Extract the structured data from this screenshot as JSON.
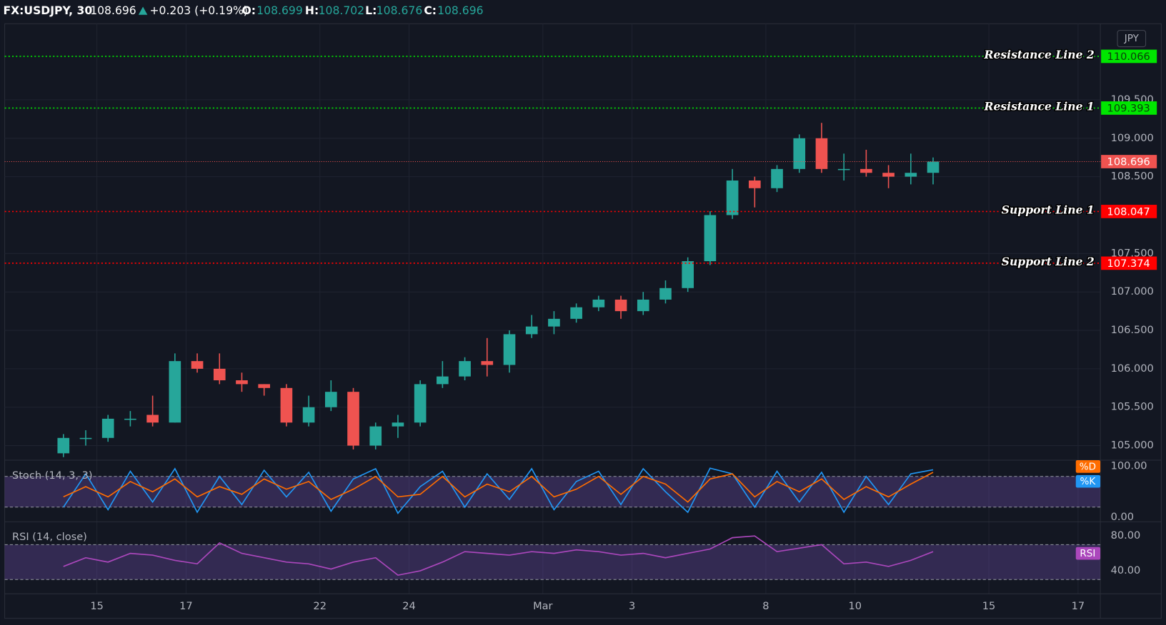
{
  "header": {
    "symbol": "FX:USDJPY, 30",
    "last": "108.696",
    "change": "+0.203 (+0.19%)",
    "ohlc": [
      {
        "label": "O:",
        "value": "108.699"
      },
      {
        "label": "H:",
        "value": "108.702"
      },
      {
        "label": "L:",
        "value": "108.676"
      },
      {
        "label": "C:",
        "value": "108.696"
      }
    ]
  },
  "chart_data": [
    {
      "type": "candlestick",
      "categories": [
        null,
        null,
        null,
        null,
        "15",
        null,
        null,
        null,
        "17",
        null,
        null,
        null,
        null,
        null,
        "22",
        null,
        null,
        null,
        "24",
        null,
        null,
        null,
        null,
        null,
        "Mar",
        null,
        null,
        null,
        "3",
        null,
        null,
        null,
        null,
        null,
        "8",
        null,
        null,
        null,
        "10",
        null,
        null,
        null,
        null,
        null,
        "15",
        null,
        null,
        null,
        "17"
      ],
      "open": [
        null,
        null,
        104.9,
        105.1,
        105.1,
        105.35,
        105.4,
        105.3,
        106.1,
        106.0,
        105.85,
        105.8,
        105.75,
        105.3,
        105.5,
        105.7,
        105.0,
        105.25,
        105.3,
        105.8,
        105.9,
        106.1,
        106.05,
        106.45,
        106.55,
        106.65,
        106.8,
        106.9,
        106.75,
        106.9,
        107.05,
        107.4,
        108.0,
        108.45,
        108.35,
        108.6,
        109.0,
        108.6,
        108.6,
        108.55,
        108.5,
        108.55,
        null,
        null,
        null,
        null,
        null,
        null,
        null
      ],
      "high": [
        null,
        null,
        105.15,
        105.2,
        105.4,
        105.45,
        105.65,
        106.2,
        106.2,
        106.2,
        105.95,
        105.8,
        105.8,
        105.65,
        105.85,
        105.75,
        105.3,
        105.4,
        105.85,
        106.1,
        106.15,
        106.4,
        106.5,
        106.7,
        106.75,
        106.85,
        106.95,
        106.95,
        107.0,
        107.15,
        107.45,
        108.05,
        108.6,
        108.5,
        108.65,
        109.05,
        109.2,
        108.8,
        108.85,
        108.65,
        108.8,
        108.75,
        null,
        null,
        null,
        null,
        null,
        null,
        null
      ],
      "low": [
        null,
        null,
        104.85,
        105.0,
        105.05,
        105.25,
        105.25,
        105.3,
        105.95,
        105.8,
        105.7,
        105.65,
        105.25,
        105.25,
        105.45,
        104.95,
        104.95,
        105.1,
        105.25,
        105.75,
        105.85,
        105.9,
        105.95,
        106.4,
        106.45,
        106.6,
        106.75,
        106.65,
        106.7,
        106.85,
        107.0,
        107.35,
        107.95,
        108.1,
        108.3,
        108.55,
        108.55,
        108.45,
        108.5,
        108.35,
        108.4,
        108.4,
        null,
        null,
        null,
        null,
        null,
        null,
        null
      ],
      "close": [
        null,
        null,
        105.1,
        105.1,
        105.35,
        105.35,
        105.3,
        106.1,
        106.0,
        105.85,
        105.8,
        105.75,
        105.3,
        105.5,
        105.7,
        105.0,
        105.25,
        105.3,
        105.8,
        105.9,
        106.1,
        106.05,
        106.45,
        106.55,
        106.65,
        106.8,
        106.9,
        106.75,
        106.9,
        107.05,
        107.4,
        108.0,
        108.45,
        108.35,
        108.6,
        109.0,
        108.6,
        108.6,
        108.55,
        108.5,
        108.55,
        108.696,
        null,
        null,
        null,
        null,
        null,
        null,
        null
      ],
      "up_color": "#26a69a",
      "down_color": "#ef5350",
      "ylim": [
        104.81,
        110.49
      ],
      "yticks": [
        {
          "value": 105,
          "label": "105.000"
        },
        {
          "value": 105.5,
          "label": "105.500"
        },
        {
          "value": 106,
          "label": "106.000"
        },
        {
          "value": 106.5,
          "label": "106.500"
        },
        {
          "value": 107,
          "label": "107.000"
        },
        {
          "value": 107.5,
          "label": "107.500"
        },
        {
          "value": 108.5,
          "label": "108.500"
        },
        {
          "value": 109,
          "label": "109.000"
        },
        {
          "value": 109.5,
          "label": "109.500"
        }
      ],
      "grid": true,
      "currency": "JPY",
      "current": 108.696,
      "current_color": "#f05350",
      "levels": [
        {
          "name": "Resistance Line 2",
          "value": 110.066,
          "color": "#00e600"
        },
        {
          "name": "Resistance Line 1",
          "value": 109.393,
          "color": "#00e600"
        },
        {
          "name": "Support Line 1",
          "value": 108.047,
          "color": "#ff0000"
        },
        {
          "name": "Support Line 2",
          "value": 107.374,
          "color": "#ff0000"
        }
      ]
    },
    {
      "type": "line",
      "title": "Stoch (14, 3, 3)",
      "ylim": [
        -8.7,
        111.6
      ],
      "yticks": [
        {
          "value": 100,
          "label": "100.00"
        },
        {
          "value": 0,
          "label": "0.00"
        }
      ],
      "band": [
        20,
        80
      ],
      "series": [
        {
          "name": "%K",
          "color": "#2196f3",
          "values": [
            null,
            null,
            20,
            85,
            15,
            90,
            30,
            95,
            10,
            80,
            25,
            92,
            40,
            88,
            12,
            75,
            95,
            8,
            60,
            90,
            20,
            85,
            35,
            95,
            15,
            70,
            90,
            25,
            95,
            50,
            10,
            96,
            85,
            20,
            90,
            30,
            88,
            10,
            80,
            25,
            85,
            93,
            null,
            null,
            null,
            null,
            null,
            null,
            null
          ]
        },
        {
          "name": "%D",
          "color": "#ff6d00",
          "values": [
            null,
            null,
            40,
            60,
            40,
            70,
            50,
            75,
            40,
            60,
            45,
            75,
            55,
            70,
            35,
            55,
            80,
            40,
            45,
            80,
            40,
            65,
            50,
            80,
            40,
            55,
            80,
            45,
            80,
            65,
            30,
            75,
            85,
            40,
            70,
            50,
            75,
            35,
            60,
            40,
            65,
            88,
            null,
            null,
            null,
            null,
            null,
            null,
            null
          ]
        }
      ]
    },
    {
      "type": "line",
      "title": "RSI (14, close)",
      "ylim": [
        13.6,
        96.2
      ],
      "yticks": [
        {
          "value": 80,
          "label": "80.00"
        },
        {
          "value": 40,
          "label": "40.00"
        }
      ],
      "band": [
        30,
        70
      ],
      "series": [
        {
          "name": "RSI",
          "color": "#ab47bc",
          "values": [
            null,
            null,
            45,
            55,
            50,
            60,
            58,
            52,
            48,
            72,
            60,
            55,
            50,
            48,
            42,
            50,
            55,
            35,
            40,
            50,
            62,
            60,
            58,
            62,
            60,
            64,
            62,
            58,
            60,
            55,
            60,
            65,
            78,
            80,
            62,
            66,
            70,
            48,
            50,
            45,
            52,
            62,
            null,
            null,
            null,
            null,
            null,
            null,
            null
          ]
        }
      ]
    }
  ]
}
